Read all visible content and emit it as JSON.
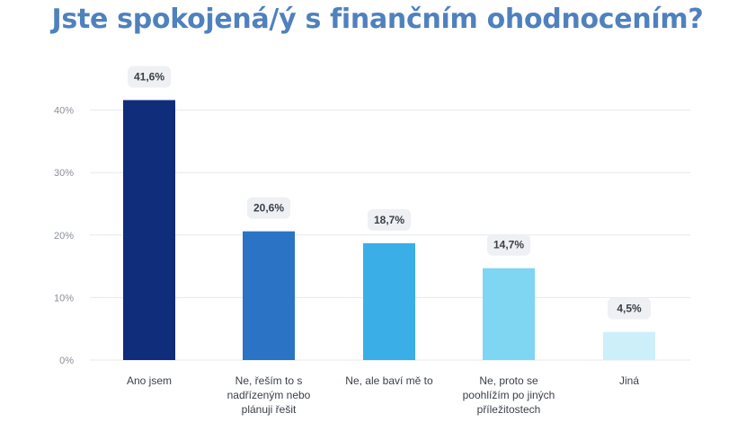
{
  "chart_data": {
    "type": "bar",
    "title": "Jste spokojená/ý s finančním ohodnocením?",
    "categories": [
      [
        "Ano jsem"
      ],
      [
        "Ne, řeším to s",
        "nadřízeným nebo",
        "plánuji řešit"
      ],
      [
        "Ne, ale baví mě to"
      ],
      [
        "Ne, proto se",
        "poohlížím po jiných",
        "příležitostech"
      ],
      [
        "Jiná"
      ]
    ],
    "values": [
      41.6,
      20.6,
      18.7,
      14.7,
      4.5
    ],
    "data_labels": [
      "41,6%",
      "20,6%",
      "18,7%",
      "14,7%",
      "4,5%"
    ],
    "colors": [
      "#0f2d7a",
      "#2a73c5",
      "#3aaee6",
      "#7fd6f2",
      "#cdeff9"
    ],
    "y_ticks": [
      0,
      10,
      20,
      30,
      40
    ],
    "y_tick_labels": [
      "0%",
      "10%",
      "20%",
      "30%",
      "40%"
    ],
    "ylim": [
      0,
      45
    ],
    "grid": true,
    "xlabel": "",
    "ylabel": ""
  }
}
